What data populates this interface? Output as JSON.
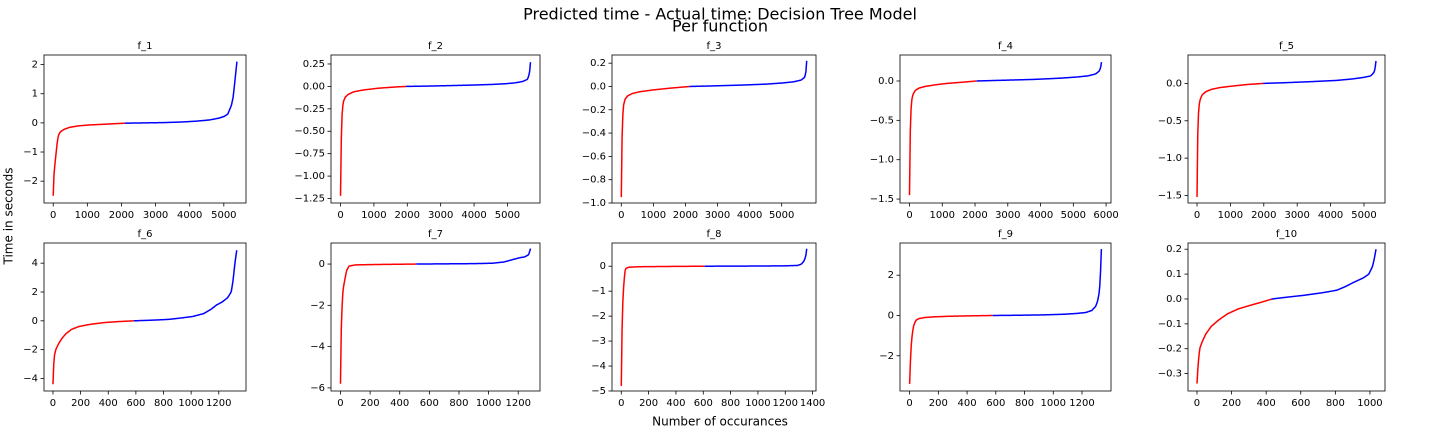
{
  "figure": {
    "title_line1": "Predicted time - Actual time: Decision Tree Model",
    "title_line2": "Per function",
    "xlabel": "Number of occurances",
    "ylabel": "Time in seconds"
  },
  "colors": {
    "negative": "#ff0000",
    "positive": "#0000ff",
    "axes": "#000000",
    "background": "#ffffff"
  },
  "chart_data": [
    {
      "type": "line",
      "title": "f_1",
      "n": 5384,
      "split": 2100,
      "xticks": [
        0,
        1000,
        2000,
        3000,
        4000,
        5000
      ],
      "yticks": [
        -2,
        -1,
        0,
        1,
        2
      ],
      "xlim": [
        -270,
        5650
      ],
      "ylim": [
        -2.75,
        2.33
      ],
      "curve": [
        [
          0,
          -2.5
        ],
        [
          0.002,
          -2.2
        ],
        [
          0.004,
          -1.8
        ],
        [
          0.008,
          -1.5
        ],
        [
          0.013,
          -1.2
        ],
        [
          0.018,
          -0.9
        ],
        [
          0.023,
          -0.6
        ],
        [
          0.03,
          -0.4
        ],
        [
          0.04,
          -0.3
        ],
        [
          0.06,
          -0.22
        ],
        [
          0.09,
          -0.15
        ],
        [
          0.14,
          -0.1
        ],
        [
          0.2,
          -0.07
        ],
        [
          0.3,
          -0.04
        ],
        [
          0.39,
          -0.01
        ],
        [
          0.5,
          0.0
        ],
        [
          0.6,
          0.01
        ],
        [
          0.7,
          0.03
        ],
        [
          0.78,
          0.06
        ],
        [
          0.85,
          0.1
        ],
        [
          0.9,
          0.16
        ],
        [
          0.93,
          0.22
        ],
        [
          0.95,
          0.3
        ],
        [
          0.96,
          0.45
        ],
        [
          0.97,
          0.6
        ],
        [
          0.98,
          0.9
        ],
        [
          0.985,
          1.2
        ],
        [
          0.99,
          1.5
        ],
        [
          0.995,
          1.8
        ],
        [
          1.0,
          2.1
        ]
      ]
    },
    {
      "type": "line",
      "title": "f_2",
      "n": 5690,
      "split": 1960,
      "xticks": [
        0,
        1000,
        2000,
        3000,
        4000,
        5000
      ],
      "yticks": [
        0.25,
        0,
        -0.25,
        -0.5,
        -0.75,
        -1.0,
        -1.25
      ],
      "xlim": [
        -285,
        5975
      ],
      "ylim": [
        -1.3,
        0.35
      ],
      "curve": [
        [
          0,
          -1.22
        ],
        [
          0.002,
          -0.9
        ],
        [
          0.004,
          -0.6
        ],
        [
          0.006,
          -0.4
        ],
        [
          0.01,
          -0.25
        ],
        [
          0.015,
          -0.17
        ],
        [
          0.025,
          -0.12
        ],
        [
          0.04,
          -0.09
        ],
        [
          0.07,
          -0.06
        ],
        [
          0.12,
          -0.04
        ],
        [
          0.2,
          -0.02
        ],
        [
          0.3,
          -0.005
        ],
        [
          0.35,
          0.0
        ],
        [
          0.45,
          0.003
        ],
        [
          0.6,
          0.01
        ],
        [
          0.7,
          0.015
        ],
        [
          0.8,
          0.022
        ],
        [
          0.87,
          0.03
        ],
        [
          0.92,
          0.04
        ],
        [
          0.96,
          0.055
        ],
        [
          0.985,
          0.08
        ],
        [
          0.995,
          0.15
        ],
        [
          1.0,
          0.27
        ]
      ]
    },
    {
      "type": "line",
      "title": "f_3",
      "n": 5780,
      "split": 2120,
      "xticks": [
        0,
        1000,
        2000,
        3000,
        4000,
        5000
      ],
      "yticks": [
        0.2,
        0,
        -0.2,
        -0.4,
        -0.6,
        -0.8,
        -1.0
      ],
      "xlim": [
        -290,
        6070
      ],
      "ylim": [
        -1.0,
        0.27
      ],
      "curve": [
        [
          0,
          -0.95
        ],
        [
          0.002,
          -0.7
        ],
        [
          0.004,
          -0.45
        ],
        [
          0.007,
          -0.28
        ],
        [
          0.011,
          -0.17
        ],
        [
          0.02,
          -0.11
        ],
        [
          0.035,
          -0.08
        ],
        [
          0.06,
          -0.06
        ],
        [
          0.1,
          -0.045
        ],
        [
          0.17,
          -0.03
        ],
        [
          0.26,
          -0.015
        ],
        [
          0.37,
          0.0
        ],
        [
          0.5,
          0.005
        ],
        [
          0.65,
          0.012
        ],
        [
          0.78,
          0.02
        ],
        [
          0.87,
          0.03
        ],
        [
          0.93,
          0.04
        ],
        [
          0.97,
          0.055
        ],
        [
          0.99,
          0.08
        ],
        [
          0.996,
          0.13
        ],
        [
          1.0,
          0.22
        ]
      ]
    },
    {
      "type": "line",
      "title": "f_4",
      "n": 5860,
      "split": 2050,
      "xticks": [
        0,
        1000,
        2000,
        3000,
        4000,
        5000,
        6000
      ],
      "yticks": [
        0,
        -0.5,
        -1.0,
        -1.5
      ],
      "xlim": [
        -290,
        6150
      ],
      "ylim": [
        -1.55,
        0.33
      ],
      "curve": [
        [
          0,
          -1.45
        ],
        [
          0.002,
          -1.0
        ],
        [
          0.004,
          -0.65
        ],
        [
          0.007,
          -0.4
        ],
        [
          0.011,
          -0.25
        ],
        [
          0.018,
          -0.17
        ],
        [
          0.03,
          -0.12
        ],
        [
          0.05,
          -0.09
        ],
        [
          0.08,
          -0.07
        ],
        [
          0.13,
          -0.05
        ],
        [
          0.2,
          -0.03
        ],
        [
          0.28,
          -0.015
        ],
        [
          0.35,
          0.0
        ],
        [
          0.5,
          0.01
        ],
        [
          0.65,
          0.02
        ],
        [
          0.78,
          0.035
        ],
        [
          0.87,
          0.05
        ],
        [
          0.93,
          0.065
        ],
        [
          0.97,
          0.09
        ],
        [
          0.99,
          0.13
        ],
        [
          0.996,
          0.18
        ],
        [
          1.0,
          0.24
        ]
      ]
    },
    {
      "type": "line",
      "title": "f_5",
      "n": 5360,
      "split": 1980,
      "xticks": [
        0,
        1000,
        2000,
        3000,
        4000,
        5000
      ],
      "yticks": [
        0,
        -0.5,
        -1.0,
        -1.5
      ],
      "xlim": [
        -270,
        5630
      ],
      "ylim": [
        -1.6,
        0.38
      ],
      "curve": [
        [
          0,
          -1.52
        ],
        [
          0.002,
          -1.1
        ],
        [
          0.004,
          -0.7
        ],
        [
          0.007,
          -0.45
        ],
        [
          0.011,
          -0.3
        ],
        [
          0.018,
          -0.21
        ],
        [
          0.03,
          -0.15
        ],
        [
          0.05,
          -0.11
        ],
        [
          0.08,
          -0.08
        ],
        [
          0.13,
          -0.055
        ],
        [
          0.2,
          -0.035
        ],
        [
          0.28,
          -0.015
        ],
        [
          0.37,
          0.0
        ],
        [
          0.5,
          0.01
        ],
        [
          0.65,
          0.025
        ],
        [
          0.78,
          0.04
        ],
        [
          0.87,
          0.06
        ],
        [
          0.93,
          0.08
        ],
        [
          0.97,
          0.1
        ],
        [
          0.99,
          0.15
        ],
        [
          0.996,
          0.22
        ],
        [
          1.0,
          0.3
        ]
      ]
    },
    {
      "type": "line",
      "title": "f_6",
      "n": 1330,
      "split": 585,
      "xticks": [
        0,
        200,
        400,
        600,
        800,
        1000,
        1200
      ],
      "yticks": [
        4,
        2,
        0,
        -2,
        -4
      ],
      "xlim": [
        -65,
        1397
      ],
      "ylim": [
        -4.87,
        5.4
      ],
      "curve": [
        [
          0,
          -4.4
        ],
        [
          0.003,
          -3.2
        ],
        [
          0.008,
          -2.4
        ],
        [
          0.015,
          -2.0
        ],
        [
          0.03,
          -1.6
        ],
        [
          0.05,
          -1.2
        ],
        [
          0.07,
          -0.9
        ],
        [
          0.1,
          -0.6
        ],
        [
          0.14,
          -0.4
        ],
        [
          0.2,
          -0.25
        ],
        [
          0.28,
          -0.12
        ],
        [
          0.36,
          -0.05
        ],
        [
          0.44,
          0.0
        ],
        [
          0.55,
          0.05
        ],
        [
          0.63,
          0.1
        ],
        [
          0.7,
          0.2
        ],
        [
          0.76,
          0.3
        ],
        [
          0.82,
          0.5
        ],
        [
          0.86,
          0.8
        ],
        [
          0.89,
          1.1
        ],
        [
          0.92,
          1.3
        ],
        [
          0.95,
          1.6
        ],
        [
          0.97,
          2.0
        ],
        [
          0.98,
          2.8
        ],
        [
          0.99,
          4.0
        ],
        [
          1.0,
          4.9
        ]
      ]
    },
    {
      "type": "line",
      "title": "f_7",
      "n": 1283,
      "split": 512,
      "xticks": [
        0,
        200,
        400,
        600,
        800,
        1000,
        1200
      ],
      "yticks": [
        0,
        -2,
        -4,
        -6
      ],
      "xlim": [
        -64,
        1347
      ],
      "ylim": [
        -6.15,
        1.02
      ],
      "curve": [
        [
          0,
          -5.8
        ],
        [
          0.002,
          -4.5
        ],
        [
          0.004,
          -3.2
        ],
        [
          0.007,
          -2.4
        ],
        [
          0.01,
          -1.7
        ],
        [
          0.014,
          -1.2
        ],
        [
          0.02,
          -0.9
        ],
        [
          0.026,
          -0.6
        ],
        [
          0.033,
          -0.3
        ],
        [
          0.045,
          -0.1
        ],
        [
          0.08,
          -0.04
        ],
        [
          0.2,
          -0.02
        ],
        [
          0.3,
          -0.01
        ],
        [
          0.4,
          0.0
        ],
        [
          0.55,
          0.01
        ],
        [
          0.7,
          0.02
        ],
        [
          0.8,
          0.04
        ],
        [
          0.86,
          0.1
        ],
        [
          0.9,
          0.2
        ],
        [
          0.94,
          0.3
        ],
        [
          0.97,
          0.35
        ],
        [
          0.99,
          0.45
        ],
        [
          0.995,
          0.6
        ],
        [
          1.0,
          0.75
        ]
      ]
    },
    {
      "type": "line",
      "title": "f_8",
      "n": 1357,
      "split": 610,
      "xticks": [
        0,
        200,
        400,
        600,
        800,
        1000,
        1200,
        1400
      ],
      "yticks": [
        0,
        -1,
        -2,
        -3,
        -4,
        -5
      ],
      "xlim": [
        -68,
        1425
      ],
      "ylim": [
        -5.0,
        0.93
      ],
      "curve": [
        [
          0,
          -4.8
        ],
        [
          0.002,
          -3.5
        ],
        [
          0.004,
          -2.6
        ],
        [
          0.006,
          -1.9
        ],
        [
          0.009,
          -1.3
        ],
        [
          0.012,
          -0.9
        ],
        [
          0.016,
          -0.5
        ],
        [
          0.022,
          -0.1
        ],
        [
          0.04,
          -0.04
        ],
        [
          0.1,
          -0.02
        ],
        [
          0.25,
          -0.01
        ],
        [
          0.45,
          0.0
        ],
        [
          0.6,
          0.003
        ],
        [
          0.75,
          0.008
        ],
        [
          0.88,
          0.015
        ],
        [
          0.95,
          0.03
        ],
        [
          0.97,
          0.08
        ],
        [
          0.985,
          0.2
        ],
        [
          0.995,
          0.4
        ],
        [
          1.0,
          0.7
        ]
      ]
    },
    {
      "type": "line",
      "title": "f_9",
      "n": 1335,
      "split": 578,
      "xticks": [
        0,
        200,
        400,
        600,
        800,
        1000,
        1200
      ],
      "yticks": [
        2,
        0,
        -2
      ],
      "xlim": [
        -67,
        1402
      ],
      "ylim": [
        -3.75,
        3.6
      ],
      "curve": [
        [
          0,
          -3.4
        ],
        [
          0.003,
          -2.6
        ],
        [
          0.006,
          -1.8
        ],
        [
          0.01,
          -1.3
        ],
        [
          0.014,
          -0.9
        ],
        [
          0.02,
          -0.55
        ],
        [
          0.027,
          -0.35
        ],
        [
          0.035,
          -0.22
        ],
        [
          0.05,
          -0.15
        ],
        [
          0.08,
          -0.1
        ],
        [
          0.12,
          -0.07
        ],
        [
          0.2,
          -0.04
        ],
        [
          0.3,
          -0.02
        ],
        [
          0.43,
          0.0
        ],
        [
          0.55,
          0.01
        ],
        [
          0.7,
          0.03
        ],
        [
          0.8,
          0.06
        ],
        [
          0.87,
          0.1
        ],
        [
          0.92,
          0.15
        ],
        [
          0.95,
          0.25
        ],
        [
          0.97,
          0.45
        ],
        [
          0.98,
          0.7
        ],
        [
          0.99,
          1.2
        ],
        [
          0.995,
          2.0
        ],
        [
          1.0,
          3.3
        ]
      ]
    },
    {
      "type": "line",
      "title": "f_10",
      "n": 1035,
      "split": 430,
      "xticks": [
        0,
        200,
        400,
        600,
        800,
        1000
      ],
      "yticks": [
        0.2,
        0.1,
        0,
        -0.1,
        -0.2,
        -0.3
      ],
      "xlim": [
        -52,
        1087
      ],
      "ylim": [
        -0.37,
        0.225
      ],
      "curve": [
        [
          0,
          -0.34
        ],
        [
          0.003,
          -0.3
        ],
        [
          0.008,
          -0.25
        ],
        [
          0.015,
          -0.2
        ],
        [
          0.03,
          -0.17
        ],
        [
          0.05,
          -0.14
        ],
        [
          0.08,
          -0.11
        ],
        [
          0.12,
          -0.085
        ],
        [
          0.17,
          -0.06
        ],
        [
          0.23,
          -0.04
        ],
        [
          0.3,
          -0.025
        ],
        [
          0.36,
          -0.013
        ],
        [
          0.42,
          0.0
        ],
        [
          0.5,
          0.007
        ],
        [
          0.6,
          0.015
        ],
        [
          0.7,
          0.025
        ],
        [
          0.78,
          0.035
        ],
        [
          0.83,
          0.05
        ],
        [
          0.87,
          0.065
        ],
        [
          0.9,
          0.075
        ],
        [
          0.93,
          0.085
        ],
        [
          0.96,
          0.1
        ],
        [
          0.98,
          0.13
        ],
        [
          0.99,
          0.16
        ],
        [
          1.0,
          0.2
        ]
      ]
    }
  ]
}
